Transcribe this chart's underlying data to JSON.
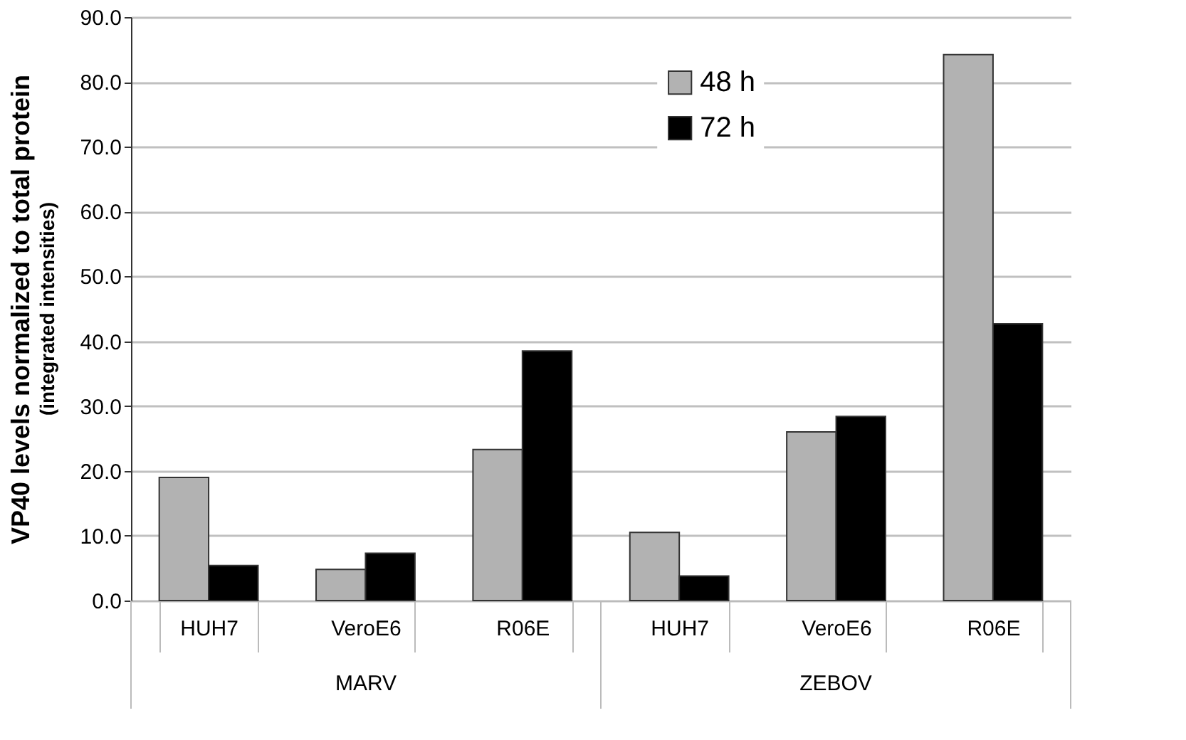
{
  "chart_data": {
    "type": "bar",
    "ylabel": "VP40 levels normalized to total protein",
    "categories": [
      "HUH7",
      "VeroE6",
      "R06E",
      "HUH7",
      "VeroE6",
      "R06E"
    ],
    "series": [
      {
        "name": "48 h",
        "color": "#b2b2b2",
        "values": [
          19.0,
          4.8,
          23.3,
          10.5,
          26.0,
          84.2
        ]
      },
      {
        "name": "72 h",
        "color": "#000000",
        "values": [
          5.4,
          7.3,
          38.5,
          3.8,
          28.4,
          42.7
        ]
      }
    ],
    "ylim": [
      0,
      90
    ],
    "yticks": [
      {
        "value": 0,
        "label": "0.0"
      },
      {
        "value": 10,
        "label": "10.0"
      },
      {
        "value": 20,
        "label": "20.0"
      },
      {
        "value": 30,
        "label": "30.0"
      },
      {
        "value": 40,
        "label": "40.0"
      },
      {
        "value": 50,
        "label": "50.0"
      },
      {
        "value": 60,
        "label": "60.0"
      },
      {
        "value": 70,
        "label": "70.0"
      },
      {
        "value": 80,
        "label": "80.0"
      },
      {
        "value": 90,
        "label": "90.0"
      }
    ],
    "grid": "y",
    "legend": "top right",
    "annotations": [
      "(integrated intensities)",
      "MARV",
      "ZEBOV"
    ]
  }
}
